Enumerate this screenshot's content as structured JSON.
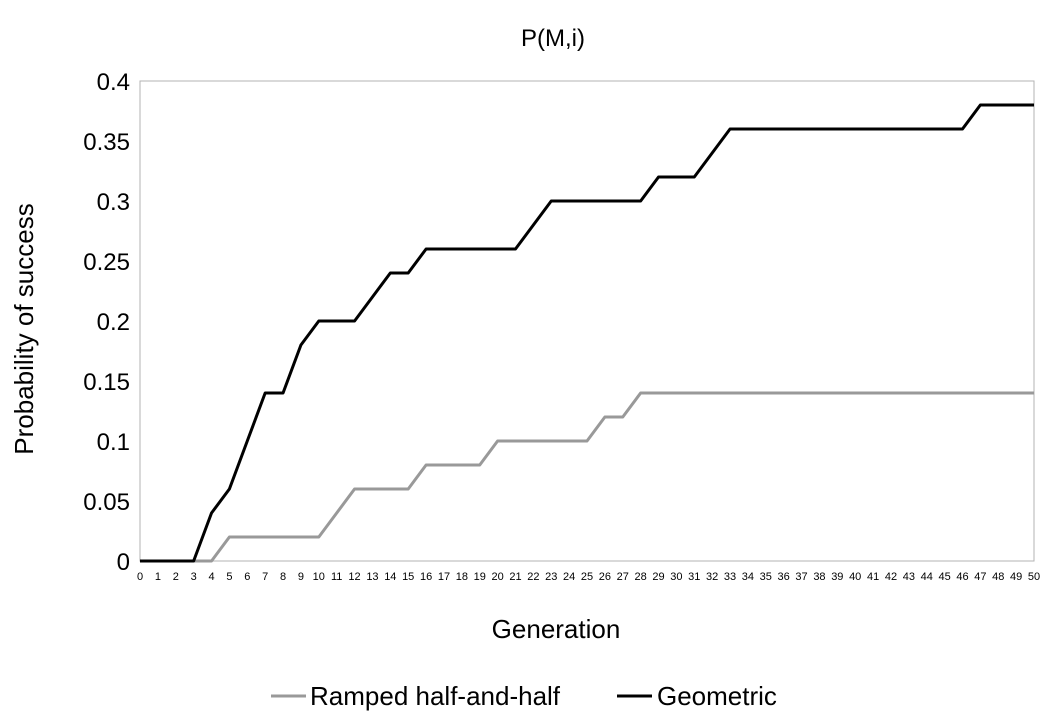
{
  "chart_data": {
    "type": "line",
    "title": "P(M,i)",
    "xlabel": "Generation",
    "ylabel": "Probability of success",
    "x": [
      0,
      1,
      2,
      3,
      4,
      5,
      6,
      7,
      8,
      9,
      10,
      11,
      12,
      13,
      14,
      15,
      16,
      17,
      18,
      19,
      20,
      21,
      22,
      23,
      24,
      25,
      26,
      27,
      28,
      29,
      30,
      31,
      32,
      33,
      34,
      35,
      36,
      37,
      38,
      39,
      40,
      41,
      42,
      43,
      44,
      45,
      46,
      47,
      48,
      49,
      50
    ],
    "ylim": [
      0,
      0.4
    ],
    "yticks": [
      "0",
      "0.05",
      "0.1",
      "0.15",
      "0.2",
      "0.25",
      "0.3",
      "0.35",
      "0.4"
    ],
    "legend_position": "bottom",
    "grid": false,
    "series": [
      {
        "name": "Ramped half-and-half",
        "color": "#999999",
        "values": [
          0,
          0,
          0,
          0,
          0,
          0.02,
          0.02,
          0.02,
          0.02,
          0.02,
          0.02,
          0.04,
          0.06,
          0.06,
          0.06,
          0.06,
          0.08,
          0.08,
          0.08,
          0.08,
          0.1,
          0.1,
          0.1,
          0.1,
          0.1,
          0.1,
          0.12,
          0.12,
          0.14,
          0.14,
          0.14,
          0.14,
          0.14,
          0.14,
          0.14,
          0.14,
          0.14,
          0.14,
          0.14,
          0.14,
          0.14,
          0.14,
          0.14,
          0.14,
          0.14,
          0.14,
          0.14,
          0.14,
          0.14,
          0.14,
          0.14
        ]
      },
      {
        "name": "Geometric",
        "color": "#000000",
        "values": [
          0,
          0,
          0,
          0,
          0.04,
          0.06,
          0.1,
          0.14,
          0.14,
          0.18,
          0.2,
          0.2,
          0.2,
          0.22,
          0.24,
          0.24,
          0.26,
          0.26,
          0.26,
          0.26,
          0.26,
          0.26,
          0.28,
          0.3,
          0.3,
          0.3,
          0.3,
          0.3,
          0.3,
          0.32,
          0.32,
          0.32,
          0.34,
          0.36,
          0.36,
          0.36,
          0.36,
          0.36,
          0.36,
          0.36,
          0.36,
          0.36,
          0.36,
          0.36,
          0.36,
          0.36,
          0.36,
          0.38,
          0.38,
          0.38,
          0.38
        ]
      }
    ]
  }
}
